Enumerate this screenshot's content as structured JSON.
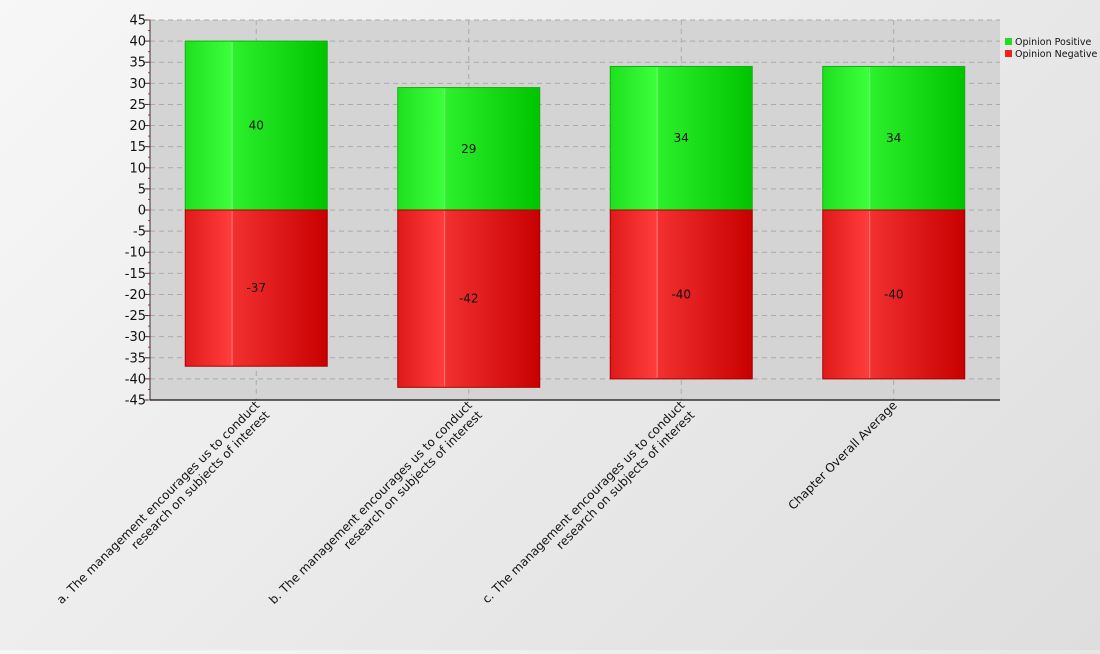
{
  "chart_data": {
    "type": "bar",
    "title": "",
    "xlabel": "",
    "ylabel": "",
    "ylim": [
      -45,
      45
    ],
    "ytick_step": 5,
    "grid": true,
    "legend_position": "top-right",
    "categories": [
      [
        "a. The management encourages us to conduct",
        "research on subjects of interest"
      ],
      [
        "b. The management encourages us to conduct",
        "research on subjects of interest"
      ],
      [
        "c. The management encourages us to conduct",
        "research on subjects of interest"
      ],
      [
        "Chapter Overall Average"
      ]
    ],
    "series": [
      {
        "name": "Opinion Positive",
        "color": "#22dd22",
        "values": [
          40,
          29,
          34,
          34
        ]
      },
      {
        "name": "Opinion Negative",
        "color": "#ee2222",
        "values": [
          -37,
          -42,
          -40,
          -40
        ]
      }
    ]
  }
}
